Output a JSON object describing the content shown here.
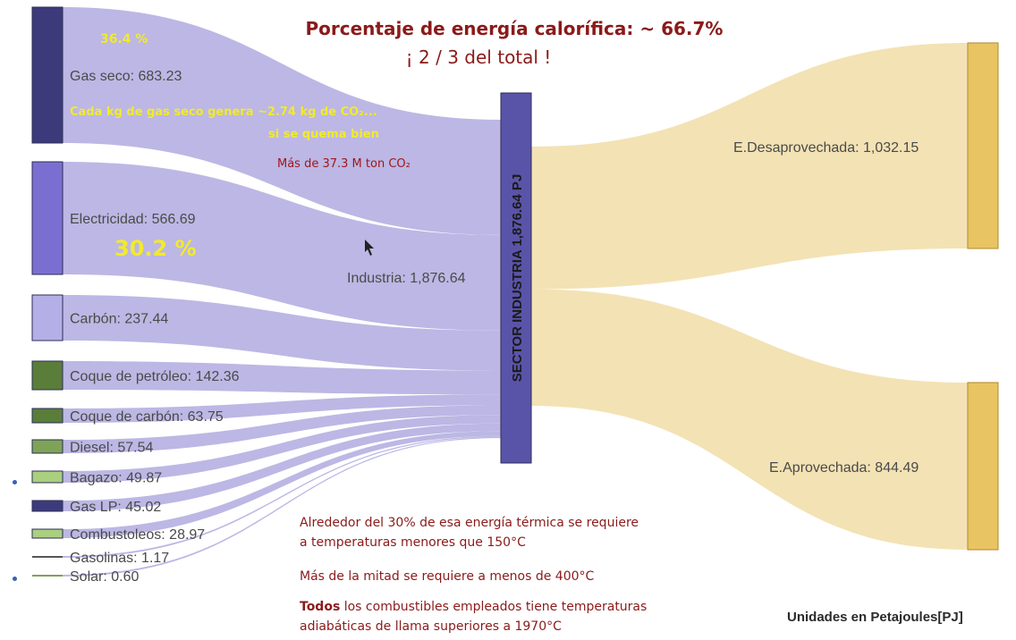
{
  "title": {
    "line1": "Porcentaje de energía calorífica:  ~ 66.7%",
    "line2": "¡ 2 / 3  del total !"
  },
  "annotations": {
    "gas_pct": "36.4 %",
    "gas_co2_line1": "Cada kg de gas seco genera  ~2.74 kg de CO₂...",
    "gas_co2_line2": "si se quema bien",
    "co2_total": "Más de 37.3  M ton CO₂",
    "elec_pct": "30.2 %"
  },
  "notes": {
    "n1_line1": "Alrededor del 30% de esa energía térmica se requiere",
    "n1_line2": "a temperaturas menores  que 150°C",
    "n2": "Más de la mitad se requiere a menos  de  400°C",
    "n3_bold": "Todos",
    "n3_rest": " los combustibles  empleados tiene temperaturas",
    "n3_line2": "adiabáticas de llama superiores a 1970°C"
  },
  "units": "Unidades en Petajoules[PJ]",
  "chart_data": {
    "type": "sankey",
    "sources": [
      {
        "label": "Gas seco: 683.23",
        "value": 683.23,
        "color": "#3d3a7c"
      },
      {
        "label": "Electricidad: 566.69",
        "value": 566.69,
        "color": "#7a6fd1"
      },
      {
        "label": "Carbón: 237.44",
        "value": 237.44,
        "color": "#b5afe8"
      },
      {
        "label": "Coque de petróleo: 142.36",
        "value": 142.36,
        "color": "#5a7d3a"
      },
      {
        "label": "Coque de carbón: 63.75",
        "value": 63.75,
        "color": "#5a7d3a"
      },
      {
        "label": "Diesel: 57.54",
        "value": 57.54,
        "color": "#7ea356"
      },
      {
        "label": "Bagazo: 49.87",
        "value": 49.87,
        "color": "#a9cf7f"
      },
      {
        "label": "Gas LP: 45.02",
        "value": 45.02,
        "color": "#3d3a7c"
      },
      {
        "label": "Combustoleos: 28.97",
        "value": 28.97,
        "color": "#a9cf7f"
      },
      {
        "label": "Gasolinas: 1.17",
        "value": 1.17,
        "color": "#555555"
      },
      {
        "label": "Solar: 0.60",
        "value": 0.6,
        "color": "#7ea356"
      }
    ],
    "middle": {
      "label": "Industria: 1,876.64",
      "bar_label": "SECTOR INDUSTRIA 1,876.64 PJ",
      "value": 1876.64,
      "color": "#5a54a8"
    },
    "targets": [
      {
        "label": "E.Desaprovechada: 1,032.15",
        "value": 1032.15,
        "color": "#e9c463"
      },
      {
        "label": "E.Aprovechada: 844.49",
        "value": 844.49,
        "color": "#e9c463"
      }
    ],
    "flow_color_in": "#b8b3e3",
    "flow_color_out": "#f3e2b4"
  }
}
